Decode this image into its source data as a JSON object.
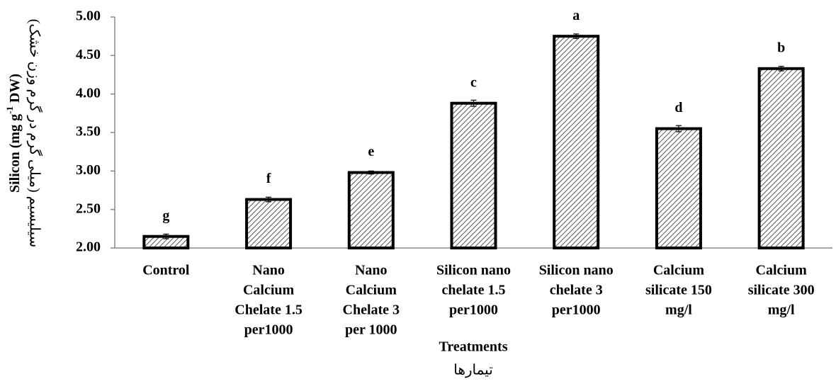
{
  "chart_data": {
    "type": "bar",
    "categories": [
      [
        "Control"
      ],
      [
        "Nano",
        "Calcium",
        "Chelate 1.5",
        "per1000"
      ],
      [
        "Nano",
        "Calcium",
        "Chelate 3",
        "per 1000"
      ],
      [
        "Silicon nano",
        "chelate 1.5",
        "per1000"
      ],
      [
        "Silicon nano",
        "chelate 3",
        "per1000"
      ],
      [
        "Calcium",
        "silicate 150",
        "mg/l"
      ],
      [
        "Calcium",
        "silicate 300",
        "mg/l"
      ]
    ],
    "values": [
      2.15,
      2.63,
      2.98,
      3.88,
      4.75,
      3.55,
      4.33
    ],
    "errors": [
      0.03,
      0.03,
      0.02,
      0.04,
      0.03,
      0.04,
      0.03
    ],
    "letters": [
      "g",
      "f",
      "e",
      "c",
      "a",
      "d",
      "b"
    ],
    "ylim": [
      2,
      5
    ],
    "yticks": [
      {
        "value": 2,
        "label": "2.00"
      },
      {
        "value": 2.5,
        "label": "2.50"
      },
      {
        "value": 3,
        "label": "3.00"
      },
      {
        "value": 3.5,
        "label": "3.50"
      },
      {
        "value": 4,
        "label": "4.00"
      },
      {
        "value": 4.5,
        "label": "4.50"
      },
      {
        "value": 5,
        "label": "5.00"
      }
    ],
    "ylabel": {
      "text": "Silicon (mg g",
      "sup": "-1",
      "tail": " DW)"
    },
    "ylabel_fa": "سیلیسیم (میلی گرم در گرم وزن خشک)",
    "xlabel": "Treatments",
    "xlabel_fa": "تیمارها",
    "color": "#ffffff",
    "edge": "#000000"
  }
}
